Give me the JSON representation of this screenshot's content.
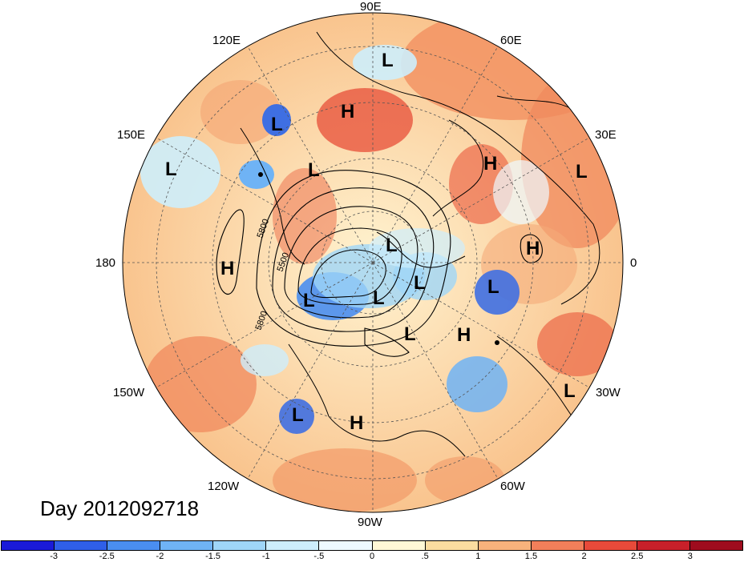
{
  "title": "Day 2012092718",
  "longitude_labels": {
    "lon_90e": "90E",
    "lon_60e": "60E",
    "lon_120e": "120E",
    "lon_150e": "150E",
    "lon_30e": "30E",
    "lon_180": "180",
    "lon_0": "0",
    "lon_150w": "150W",
    "lon_30w": "30W",
    "lon_120w": "120W",
    "lon_60w": "60W",
    "lon_90w": "90W"
  },
  "pressure_centers": [
    {
      "type": "L"
    },
    {
      "type": "H"
    },
    {
      "type": "L"
    },
    {
      "type": "L"
    },
    {
      "type": "L"
    },
    {
      "type": "H"
    },
    {
      "type": "L"
    },
    {
      "type": "H"
    },
    {
      "type": "L"
    },
    {
      "type": "H"
    },
    {
      "type": "L"
    },
    {
      "type": "L"
    },
    {
      "type": "L"
    },
    {
      "type": "L"
    },
    {
      "type": "L"
    },
    {
      "type": "H"
    },
    {
      "type": "L"
    },
    {
      "type": "L"
    },
    {
      "type": "H"
    }
  ],
  "contour_labels": [
    "5800",
    "5500",
    "5800"
  ],
  "colorbar": {
    "ticks": [
      "-3",
      "-2.5",
      "-2",
      "-1.5",
      "-1",
      "-.5",
      "0",
      ".5",
      "1",
      "1.5",
      "2",
      "2.5",
      "3"
    ],
    "colors": [
      "#1a1ad8",
      "#2f5fe8",
      "#4a8ef0",
      "#6fb3f5",
      "#9fd6f8",
      "#cdeefc",
      "#eefaff",
      "#fff8d6",
      "#fbdca0",
      "#f8b27c",
      "#f27f5a",
      "#e84a3a",
      "#c8202a",
      "#9e0c1e"
    ]
  }
}
